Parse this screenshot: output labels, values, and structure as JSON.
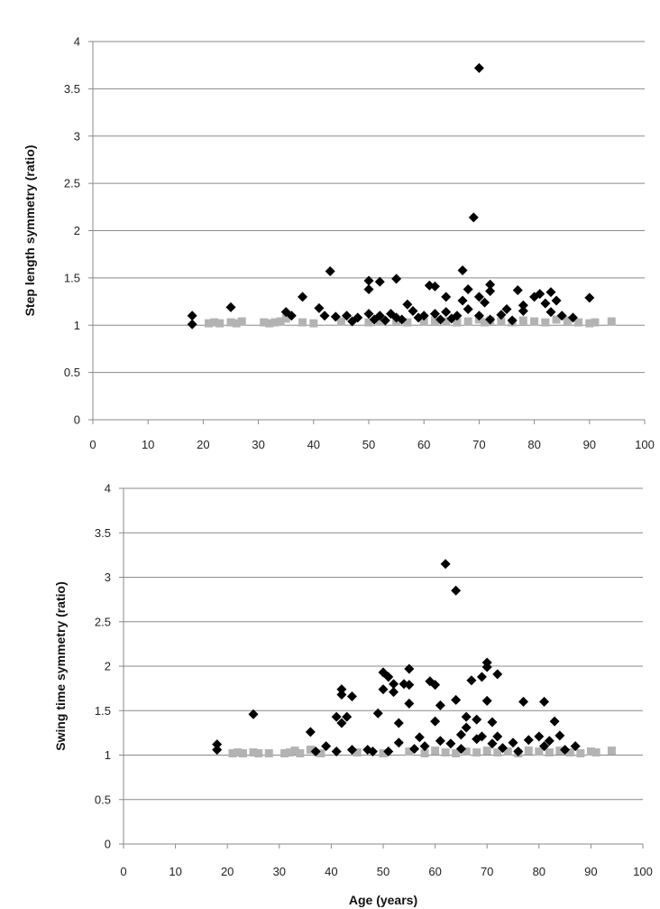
{
  "chart_data": [
    {
      "type": "scatter",
      "title": "",
      "xlabel": "",
      "ylabel": "Step length symmetry (ratio)",
      "xlim": [
        0,
        100
      ],
      "ylim": [
        0,
        4
      ],
      "x_ticks": [
        "0",
        "10",
        "20",
        "30",
        "40",
        "50",
        "60",
        "70",
        "80",
        "90",
        "100"
      ],
      "y_ticks": [
        "0",
        "0.5",
        "1",
        "1.5",
        "2",
        "2.5",
        "3",
        "3.5",
        "4"
      ],
      "grid": "horizontal",
      "series": [
        {
          "marker": "diamond",
          "color": "#000000",
          "points": [
            [
              18,
              1.1
            ],
            [
              18,
              1.01
            ],
            [
              25,
              1.19
            ],
            [
              35,
              1.14
            ],
            [
              36,
              1.1
            ],
            [
              38,
              1.3
            ],
            [
              41,
              1.18
            ],
            [
              42,
              1.1
            ],
            [
              43,
              1.57
            ],
            [
              44,
              1.09
            ],
            [
              46,
              1.1
            ],
            [
              47,
              1.04
            ],
            [
              48,
              1.08
            ],
            [
              50,
              1.47
            ],
            [
              50,
              1.38
            ],
            [
              50,
              1.12
            ],
            [
              51,
              1.06
            ],
            [
              52,
              1.46
            ],
            [
              52,
              1.1
            ],
            [
              53,
              1.05
            ],
            [
              54,
              1.12
            ],
            [
              55,
              1.49
            ],
            [
              55,
              1.08
            ],
            [
              56,
              1.06
            ],
            [
              57,
              1.22
            ],
            [
              58,
              1.15
            ],
            [
              59,
              1.08
            ],
            [
              60,
              1.1
            ],
            [
              61,
              1.42
            ],
            [
              62,
              1.41
            ],
            [
              62,
              1.12
            ],
            [
              63,
              1.06
            ],
            [
              64,
              1.3
            ],
            [
              64,
              1.14
            ],
            [
              65,
              1.07
            ],
            [
              66,
              1.1
            ],
            [
              67,
              1.58
            ],
            [
              67,
              1.26
            ],
            [
              68,
              1.38
            ],
            [
              68,
              1.17
            ],
            [
              69,
              2.14
            ],
            [
              70,
              3.72
            ],
            [
              70,
              1.3
            ],
            [
              70,
              1.1
            ],
            [
              71,
              1.24
            ],
            [
              72,
              1.43
            ],
            [
              72,
              1.36
            ],
            [
              72,
              1.06
            ],
            [
              74,
              1.11
            ],
            [
              75,
              1.17
            ],
            [
              76,
              1.05
            ],
            [
              77,
              1.37
            ],
            [
              78,
              1.21
            ],
            [
              78,
              1.15
            ],
            [
              80,
              1.3
            ],
            [
              81,
              1.33
            ],
            [
              82,
              1.23
            ],
            [
              83,
              1.35
            ],
            [
              83,
              1.14
            ],
            [
              84,
              1.26
            ],
            [
              85,
              1.1
            ],
            [
              87,
              1.08
            ],
            [
              90,
              1.29
            ]
          ]
        },
        {
          "marker": "square",
          "color": "#b3b3b3",
          "points": [
            [
              21,
              1.02
            ],
            [
              22,
              1.03
            ],
            [
              23,
              1.02
            ],
            [
              25,
              1.03
            ],
            [
              26,
              1.02
            ],
            [
              27,
              1.04
            ],
            [
              31,
              1.03
            ],
            [
              32,
              1.02
            ],
            [
              33,
              1.03
            ],
            [
              34,
              1.04
            ],
            [
              35,
              1.07
            ],
            [
              38,
              1.03
            ],
            [
              40,
              1.02
            ],
            [
              45,
              1.04
            ],
            [
              50,
              1.03
            ],
            [
              52,
              1.04
            ],
            [
              55,
              1.05
            ],
            [
              57,
              1.03
            ],
            [
              60,
              1.04
            ],
            [
              62,
              1.05
            ],
            [
              64,
              1.04
            ],
            [
              66,
              1.03
            ],
            [
              68,
              1.04
            ],
            [
              70,
              1.06
            ],
            [
              71,
              1.03
            ],
            [
              72,
              1.05
            ],
            [
              74,
              1.04
            ],
            [
              76,
              1.03
            ],
            [
              78,
              1.05
            ],
            [
              80,
              1.04
            ],
            [
              82,
              1.03
            ],
            [
              84,
              1.06
            ],
            [
              86,
              1.05
            ],
            [
              88,
              1.03
            ],
            [
              90,
              1.02
            ],
            [
              91,
              1.03
            ],
            [
              94,
              1.04
            ]
          ]
        }
      ]
    },
    {
      "type": "scatter",
      "title": "",
      "xlabel": "Age (years)",
      "ylabel": "Swing time symmetry (ratio)",
      "xlim": [
        0,
        100
      ],
      "ylim": [
        0,
        4
      ],
      "x_ticks": [
        "0",
        "10",
        "20",
        "30",
        "40",
        "50",
        "60",
        "70",
        "80",
        "90",
        "100"
      ],
      "y_ticks": [
        "0",
        "0.5",
        "1",
        "1.5",
        "2",
        "2.5",
        "3",
        "3.5",
        "4"
      ],
      "grid": "horizontal",
      "series": [
        {
          "marker": "diamond",
          "color": "#000000",
          "points": [
            [
              18,
              1.12
            ],
            [
              18,
              1.06
            ],
            [
              25,
              1.46
            ],
            [
              36,
              1.26
            ],
            [
              37,
              1.04
            ],
            [
              39,
              1.1
            ],
            [
              41,
              1.04
            ],
            [
              41,
              1.43
            ],
            [
              42,
              1.74
            ],
            [
              42,
              1.68
            ],
            [
              42,
              1.36
            ],
            [
              43,
              1.43
            ],
            [
              44,
              1.66
            ],
            [
              44,
              1.06
            ],
            [
              47,
              1.06
            ],
            [
              48,
              1.04
            ],
            [
              49,
              1.47
            ],
            [
              50,
              1.93
            ],
            [
              50,
              1.74
            ],
            [
              51,
              1.88
            ],
            [
              51,
              1.04
            ],
            [
              52,
              1.8
            ],
            [
              52,
              1.71
            ],
            [
              53,
              1.36
            ],
            [
              53,
              1.14
            ],
            [
              54,
              1.8
            ],
            [
              55,
              1.97
            ],
            [
              55,
              1.79
            ],
            [
              55,
              1.58
            ],
            [
              56,
              1.07
            ],
            [
              57,
              1.2
            ],
            [
              58,
              1.1
            ],
            [
              59,
              1.83
            ],
            [
              60,
              1.79
            ],
            [
              60,
              1.38
            ],
            [
              61,
              1.56
            ],
            [
              61,
              1.16
            ],
            [
              62,
              3.15
            ],
            [
              63,
              1.13
            ],
            [
              64,
              2.85
            ],
            [
              64,
              1.62
            ],
            [
              65,
              1.23
            ],
            [
              65,
              1.07
            ],
            [
              66,
              1.31
            ],
            [
              66,
              1.43
            ],
            [
              67,
              1.84
            ],
            [
              68,
              1.4
            ],
            [
              68,
              1.18
            ],
            [
              69,
              1.88
            ],
            [
              69,
              1.21
            ],
            [
              70,
              2.04
            ],
            [
              70,
              1.99
            ],
            [
              70,
              1.61
            ],
            [
              71,
              1.37
            ],
            [
              71,
              1.13
            ],
            [
              72,
              1.91
            ],
            [
              72,
              1.21
            ],
            [
              73,
              1.08
            ],
            [
              75,
              1.14
            ],
            [
              76,
              1.04
            ],
            [
              77,
              1.6
            ],
            [
              78,
              1.17
            ],
            [
              80,
              1.21
            ],
            [
              81,
              1.6
            ],
            [
              81,
              1.1
            ],
            [
              82,
              1.16
            ],
            [
              83,
              1.38
            ],
            [
              84,
              1.22
            ],
            [
              85,
              1.06
            ],
            [
              87,
              1.1
            ]
          ]
        },
        {
          "marker": "square",
          "color": "#b3b3b3",
          "points": [
            [
              21,
              1.02
            ],
            [
              22,
              1.03
            ],
            [
              23,
              1.02
            ],
            [
              25,
              1.03
            ],
            [
              26,
              1.02
            ],
            [
              28,
              1.02
            ],
            [
              31,
              1.02
            ],
            [
              32,
              1.03
            ],
            [
              33,
              1.05
            ],
            [
              34,
              1.02
            ],
            [
              36,
              1.06
            ],
            [
              38,
              1.02
            ],
            [
              45,
              1.03
            ],
            [
              50,
              1.02
            ],
            [
              55,
              1.04
            ],
            [
              58,
              1.02
            ],
            [
              60,
              1.05
            ],
            [
              62,
              1.03
            ],
            [
              64,
              1.02
            ],
            [
              66,
              1.04
            ],
            [
              68,
              1.03
            ],
            [
              70,
              1.05
            ],
            [
              72,
              1.03
            ],
            [
              74,
              1.04
            ],
            [
              76,
              1.02
            ],
            [
              78,
              1.05
            ],
            [
              80,
              1.04
            ],
            [
              82,
              1.03
            ],
            [
              84,
              1.05
            ],
            [
              86,
              1.03
            ],
            [
              88,
              1.02
            ],
            [
              90,
              1.04
            ],
            [
              91,
              1.03
            ],
            [
              94,
              1.05
            ]
          ]
        }
      ]
    }
  ]
}
